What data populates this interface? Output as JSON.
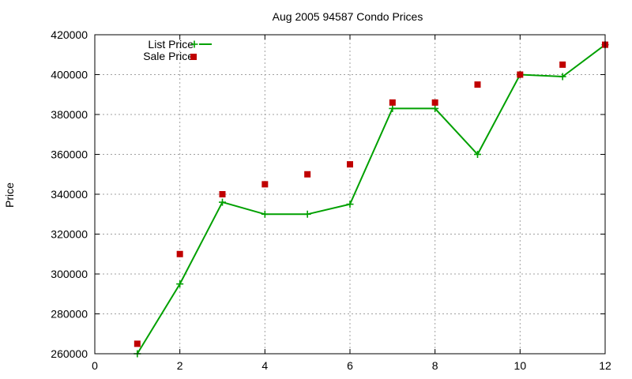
{
  "chart_data": {
    "type": "line",
    "title": "Aug 2005 94587 Condo Prices",
    "xlabel": "",
    "ylabel": "Price",
    "xlim": [
      0,
      12
    ],
    "ylim": [
      260000,
      420000
    ],
    "x_ticks": [
      "0",
      "2",
      "4",
      "6",
      "8",
      "10",
      "12"
    ],
    "y_ticks": [
      "260000",
      "280000",
      "300000",
      "320000",
      "340000",
      "360000",
      "380000",
      "400000",
      "420000"
    ],
    "grid": true,
    "legend_position": "top-left",
    "series": [
      {
        "name": "List Price",
        "style": "line with + markers",
        "color": "#00a000",
        "x": [
          1,
          2,
          3,
          4,
          5,
          6,
          7,
          8,
          9,
          10,
          11,
          12
        ],
        "y": [
          260000,
          295000,
          336000,
          330000,
          330000,
          335000,
          383000,
          383000,
          360000,
          400000,
          399000,
          415000
        ]
      },
      {
        "name": "Sale Price",
        "style": "square markers",
        "color": "#c00000",
        "x": [
          1,
          2,
          3,
          4,
          5,
          6,
          7,
          8,
          9,
          10,
          11,
          12
        ],
        "y": [
          265000,
          310000,
          340000,
          345000,
          350000,
          355000,
          386000,
          386000,
          395000,
          400000,
          405000,
          415000
        ]
      }
    ]
  }
}
